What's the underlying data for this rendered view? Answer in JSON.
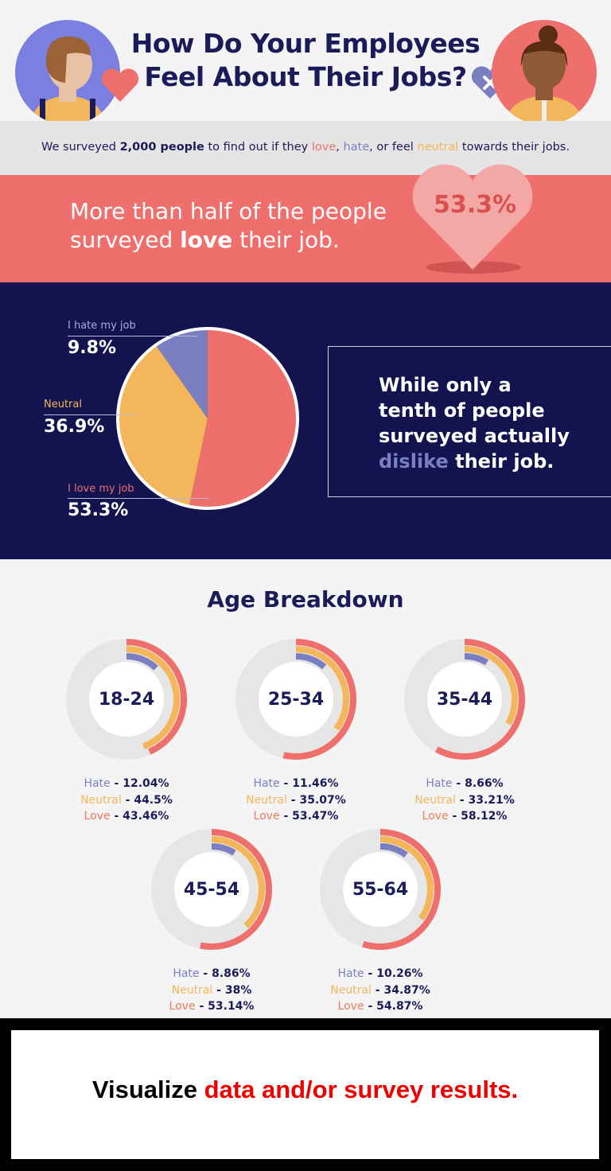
{
  "header": {
    "title_line1": "How Do Your Employees",
    "title_line2": "Feel About Their Jobs?"
  },
  "intro": {
    "pre": "We surveyed ",
    "count": "2,000 people",
    "mid": " to find out if they ",
    "love": "love",
    "comma1": ", ",
    "hate": "hate",
    "mid2": ", or feel ",
    "neutral": "neutral",
    "post": " towards their jobs."
  },
  "highlight": {
    "line1": "More than half of the people",
    "line2_pre": "surveyed ",
    "line2_bold": "love",
    "line2_post": " their job.",
    "heart_value": "53.3%"
  },
  "callout": {
    "line1": "While only a",
    "line2": "tenth of people",
    "line3": "surveyed actually",
    "line4_accent": "dislike",
    "line4_post": " their job."
  },
  "colors": {
    "love": "#ef6f6c",
    "neutral": "#f4b65a",
    "hate": "#7a7fc2",
    "navy": "#1c1b5a",
    "track": "#e6e6e6"
  },
  "chart_data": [
    {
      "type": "pie",
      "slices": [
        {
          "label": "I love my job",
          "value": 53.3,
          "display": "53.3%",
          "color": "#ef6f6c"
        },
        {
          "label": "Neutral",
          "value": 36.9,
          "display": "36.9%",
          "color": "#f4b65a"
        },
        {
          "label": "I hate my job",
          "value": 9.8,
          "display": "9.8%",
          "color": "#7a7fc2"
        }
      ]
    },
    {
      "type": "radial-bar",
      "title": "Age Breakdown",
      "series_labels": {
        "hate": "Hate",
        "neutral": "Neutral",
        "love": "Love"
      },
      "groups": [
        {
          "label": "18-24",
          "hate": 12.04,
          "neutral": 44.5,
          "love": 43.46,
          "hate_text": "12.04%",
          "neutral_text": "44.5%",
          "love_text": "43.46%"
        },
        {
          "label": "25-34",
          "hate": 11.46,
          "neutral": 35.07,
          "love": 53.47,
          "hate_text": "11.46%",
          "neutral_text": "35.07%",
          "love_text": "53.47%"
        },
        {
          "label": "35-44",
          "hate": 8.66,
          "neutral": 33.21,
          "love": 58.12,
          "hate_text": "8.66%",
          "neutral_text": "33.21%",
          "love_text": "58.12%"
        },
        {
          "label": "45-54",
          "hate": 8.86,
          "neutral": 38,
          "love": 53.14,
          "hate_text": "8.86%",
          "neutral_text": "38%",
          "love_text": "53.14%"
        },
        {
          "label": "55-64",
          "hate": 10.26,
          "neutral": 34.87,
          "love": 54.87,
          "hate_text": "10.26%",
          "neutral_text": "34.87%",
          "love_text": "54.87%"
        }
      ]
    }
  ],
  "footer": {
    "pre": "Visualize ",
    "accent": "data and/or survey results."
  }
}
